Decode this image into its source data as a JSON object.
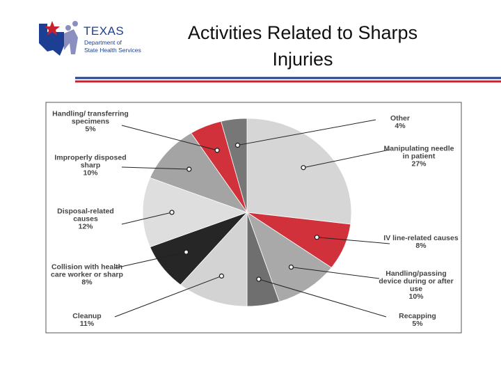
{
  "logo": {
    "name": "TEXAS",
    "line1": "Department of",
    "line2": "State Health Services"
  },
  "chart_data": {
    "type": "pie",
    "title": "Activities Related to Sharps Injuries",
    "categories": [
      "Manipulating needle in patient",
      "IV line-related causes",
      "Handling/passing device during or after use",
      "Recapping",
      "Cleanup",
      "Collision with health care worker or sharp",
      "Disposal-related causes",
      "Improperly disposed sharp",
      "Handling/ transferring specimens",
      "Other"
    ],
    "values": [
      27,
      8,
      10,
      5,
      11,
      8,
      12,
      10,
      5,
      4
    ],
    "value_labels": [
      "27%",
      "8%",
      "10%",
      "5%",
      "11%",
      "8%",
      "12%",
      "10%",
      "5%",
      "4%"
    ],
    "colors": [
      "#d6d6d6",
      "#d0313b",
      "#a9a9a9",
      "#6f6f6f",
      "#d3d3d3",
      "#262626",
      "#dedede",
      "#a4a4a4",
      "#d0313b",
      "#777777"
    ]
  }
}
